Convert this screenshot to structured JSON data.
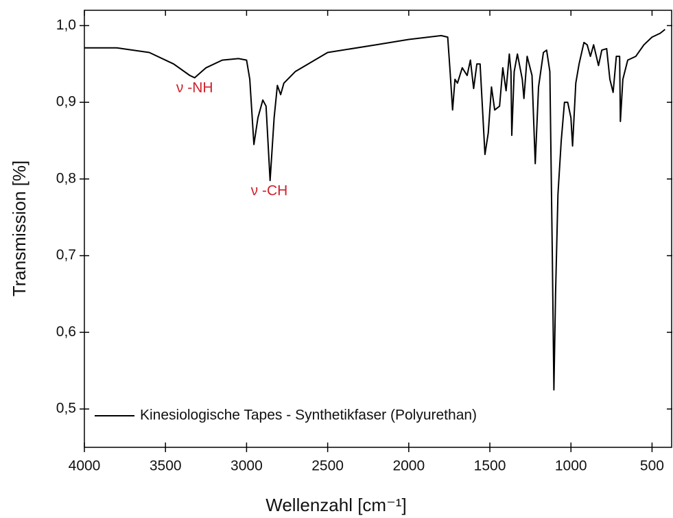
{
  "chart_data": {
    "type": "line",
    "xlabel": "Wellenzahl [cm⁻¹]",
    "ylabel": "Transmission [%]",
    "annotations": [
      {
        "text": "ν -NH",
        "x": 3320,
        "y": 0.918,
        "color": "#d0202a"
      },
      {
        "text": "ν -CH",
        "x": 2860,
        "y": 0.784,
        "color": "#d0202a"
      }
    ],
    "legend": "lower left",
    "xlim": [
      4000,
      375
    ],
    "ylim": [
      0.45,
      1.02
    ],
    "xticks": [
      4000,
      3500,
      3000,
      2500,
      2000,
      1500,
      1000,
      500
    ],
    "yticks": [
      {
        "value": 0.5,
        "label": "0,5"
      },
      {
        "value": 0.6,
        "label": "0,6"
      },
      {
        "value": 0.7,
        "label": "0,7"
      },
      {
        "value": 0.8,
        "label": "0,8"
      },
      {
        "value": 0.9,
        "label": "0,9"
      },
      {
        "value": 1.0,
        "label": "1,0"
      }
    ],
    "x": [
      4000,
      3800,
      3600,
      3450,
      3350,
      3320,
      3250,
      3150,
      3050,
      3000,
      2980,
      2955,
      2930,
      2900,
      2880,
      2855,
      2830,
      2810,
      2790,
      2770,
      2700,
      2500,
      2200,
      2000,
      1800,
      1760,
      1745,
      1730,
      1715,
      1700,
      1670,
      1640,
      1620,
      1600,
      1580,
      1560,
      1540,
      1530,
      1510,
      1490,
      1470,
      1440,
      1420,
      1400,
      1380,
      1370,
      1365,
      1350,
      1330,
      1300,
      1290,
      1270,
      1240,
      1220,
      1200,
      1170,
      1150,
      1130,
      1115,
      1105,
      1095,
      1080,
      1060,
      1040,
      1020,
      1000,
      990,
      970,
      950,
      920,
      900,
      880,
      860,
      830,
      810,
      780,
      760,
      740,
      720,
      700,
      695,
      680,
      650,
      600,
      550,
      500,
      450,
      420
    ],
    "series": [
      {
        "name": "Kinesiologische Tapes - Synthetikfaser (Polyurethan)",
        "color": "#000000",
        "values": [
          0.971,
          0.971,
          0.965,
          0.95,
          0.935,
          0.932,
          0.945,
          0.955,
          0.957,
          0.955,
          0.93,
          0.845,
          0.88,
          0.903,
          0.895,
          0.798,
          0.88,
          0.922,
          0.91,
          0.925,
          0.94,
          0.965,
          0.975,
          0.982,
          0.987,
          0.985,
          0.94,
          0.89,
          0.93,
          0.925,
          0.945,
          0.935,
          0.955,
          0.918,
          0.95,
          0.95,
          0.87,
          0.832,
          0.86,
          0.92,
          0.89,
          0.895,
          0.945,
          0.915,
          0.963,
          0.94,
          0.857,
          0.94,
          0.963,
          0.93,
          0.905,
          0.96,
          0.935,
          0.82,
          0.92,
          0.965,
          0.968,
          0.94,
          0.7,
          0.525,
          0.65,
          0.78,
          0.85,
          0.9,
          0.9,
          0.88,
          0.843,
          0.925,
          0.95,
          0.978,
          0.975,
          0.96,
          0.975,
          0.948,
          0.968,
          0.97,
          0.93,
          0.913,
          0.96,
          0.96,
          0.875,
          0.93,
          0.955,
          0.96,
          0.975,
          0.985,
          0.99,
          0.995
        ]
      }
    ]
  }
}
